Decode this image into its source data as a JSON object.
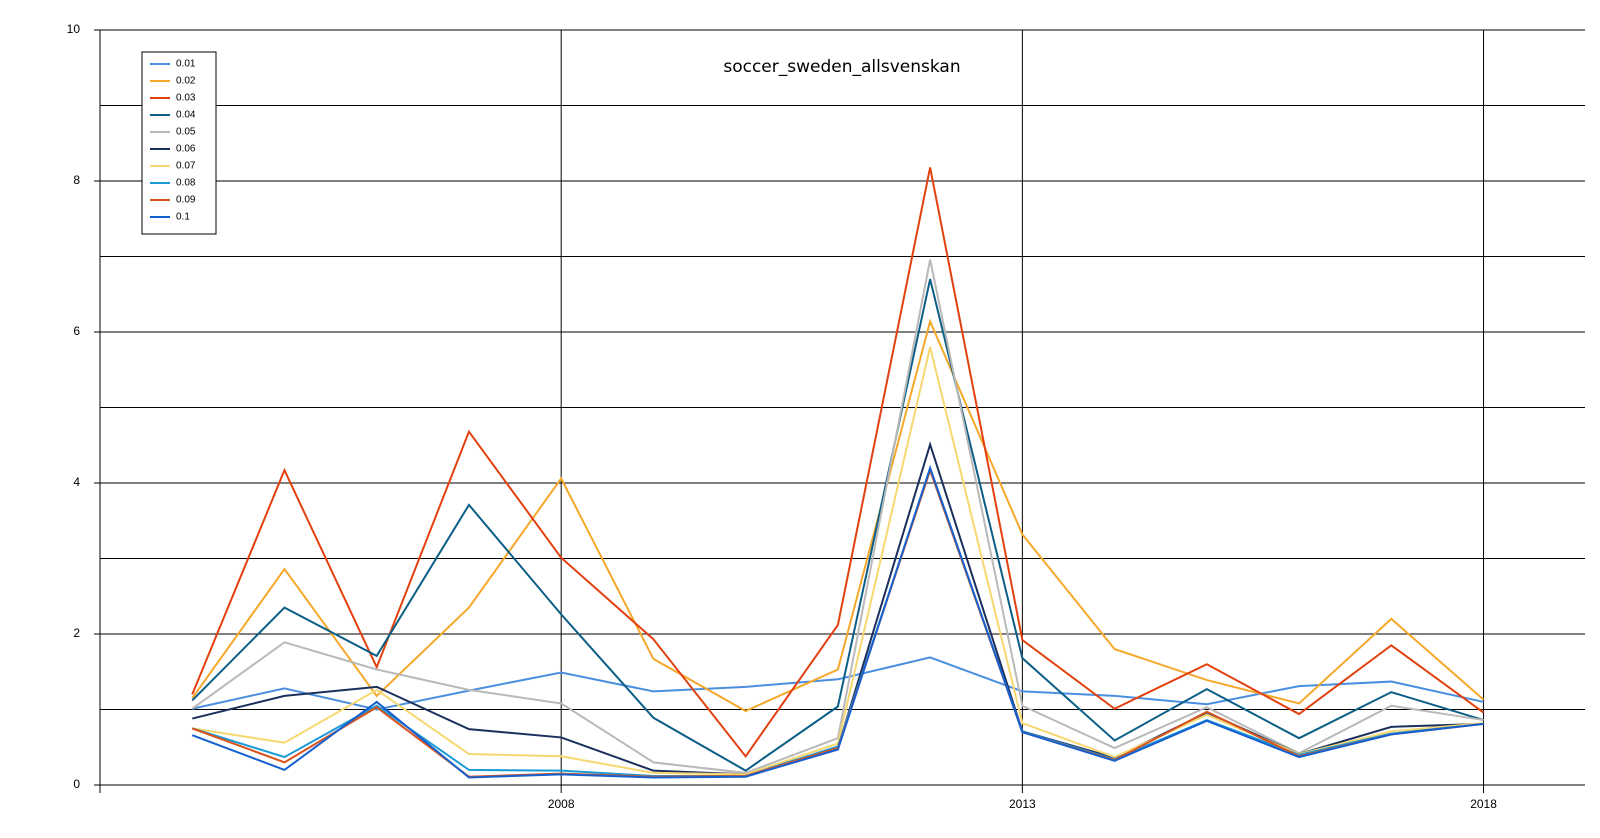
{
  "chart_data": {
    "type": "line",
    "title": "soccer_sweden_allsvenskan",
    "x": [
      2004,
      2005,
      2006,
      2007,
      2008,
      2009,
      2010,
      2011,
      2012,
      2013,
      2014,
      2015,
      2016,
      2017,
      2018
    ],
    "xlim": [
      2003,
      2019.1
    ],
    "xticks": [
      2008,
      2013,
      2018
    ],
    "ylim": [
      0,
      10
    ],
    "yticks": [
      0,
      2,
      4,
      6,
      8,
      10
    ],
    "minor_yticks": [
      1,
      3,
      5,
      7,
      9
    ],
    "grid": true,
    "legend": "upper left",
    "series": [
      {
        "name": "0.01",
        "color": "#4a8fe0",
        "values": [
          1.01,
          1.28,
          1.0,
          1.25,
          1.49,
          1.24,
          1.3,
          1.4,
          1.69,
          1.24,
          1.18,
          1.07,
          1.31,
          1.37,
          1.1
        ]
      },
      {
        "name": "0.02",
        "color": "#f5a82a",
        "values": [
          1.15,
          2.86,
          1.18,
          2.35,
          4.06,
          1.67,
          0.98,
          1.53,
          6.14,
          3.32,
          1.8,
          1.39,
          1.08,
          2.2,
          1.13
        ]
      },
      {
        "name": "0.03",
        "color": "#e2410f",
        "values": [
          1.2,
          4.17,
          1.56,
          4.68,
          3.01,
          1.93,
          0.38,
          2.12,
          8.18,
          1.92,
          1.01,
          1.6,
          0.94,
          1.85,
          0.96
        ]
      },
      {
        "name": "0.04",
        "color": "#0b5e86",
        "values": [
          1.12,
          2.35,
          1.71,
          3.71,
          2.26,
          0.89,
          0.19,
          1.04,
          6.7,
          1.68,
          0.59,
          1.27,
          0.62,
          1.23,
          0.86
        ]
      },
      {
        "name": "0.05",
        "color": "#b9b9b9",
        "values": [
          1.01,
          1.89,
          1.53,
          1.26,
          1.08,
          0.3,
          0.16,
          0.62,
          6.96,
          1.05,
          0.49,
          1.03,
          0.42,
          1.05,
          0.86
        ]
      },
      {
        "name": "0.06",
        "color": "#1b2f5e",
        "values": [
          0.88,
          1.18,
          1.3,
          0.74,
          0.63,
          0.19,
          0.14,
          0.49,
          4.51,
          0.71,
          0.36,
          0.96,
          0.41,
          0.77,
          0.81
        ]
      },
      {
        "name": "0.07",
        "color": "#f7d870",
        "values": [
          0.75,
          0.56,
          1.26,
          0.41,
          0.38,
          0.16,
          0.14,
          0.55,
          5.8,
          0.82,
          0.37,
          0.93,
          0.41,
          0.71,
          0.82
        ]
      },
      {
        "name": "0.08",
        "color": "#1a9bd7",
        "values": [
          0.75,
          0.37,
          1.05,
          0.2,
          0.19,
          0.12,
          0.12,
          0.51,
          4.17,
          0.71,
          0.34,
          0.86,
          0.4,
          0.68,
          0.81
        ]
      },
      {
        "name": "0.09",
        "color": "#d9531e",
        "values": [
          0.75,
          0.3,
          1.03,
          0.11,
          0.15,
          0.11,
          0.12,
          0.49,
          4.17,
          0.7,
          0.33,
          0.97,
          0.38,
          0.67,
          0.81
        ]
      },
      {
        "name": "0.1",
        "color": "#1560d0",
        "values": [
          0.66,
          0.2,
          1.1,
          0.1,
          0.14,
          0.1,
          0.11,
          0.47,
          4.2,
          0.7,
          0.32,
          0.85,
          0.37,
          0.67,
          0.81
        ]
      }
    ]
  }
}
